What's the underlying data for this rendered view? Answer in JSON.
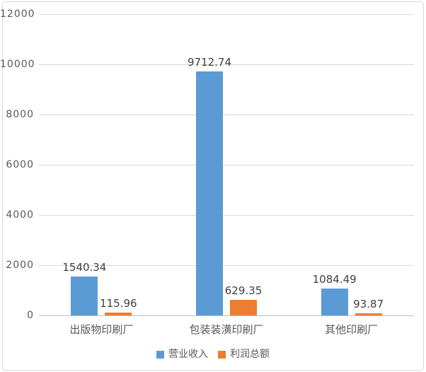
{
  "colors": {
    "revenue": "#5B9BD5",
    "profit": "#ED7D31",
    "gridline": "#D9D9D9",
    "axis_line": "#BFBFBF",
    "tick_text": "#595959",
    "data_label_text": "#404040",
    "frame_border": "#D9D9D9",
    "background": "#FFFFFF"
  },
  "chart_data": {
    "type": "bar",
    "title": "",
    "categories": [
      "出版物印刷厂",
      "包装装潢印刷厂",
      "其他印刷厂"
    ],
    "series": [
      {
        "name": "营业收入",
        "color": "#5B9BD5",
        "values": [
          1540.34,
          9712.74,
          1084.49
        ]
      },
      {
        "name": "利润总额",
        "color": "#ED7D31",
        "values": [
          115.96,
          629.35,
          93.87
        ]
      }
    ],
    "y_axis": {
      "min": 0,
      "max": 12000,
      "step": 2000,
      "ticks": [
        0,
        2000,
        4000,
        6000,
        8000,
        10000,
        12000
      ]
    },
    "grid": true,
    "data_labels": true,
    "label_format": "0.00",
    "legend_position": "bottom",
    "xlabel": "",
    "ylabel": ""
  }
}
